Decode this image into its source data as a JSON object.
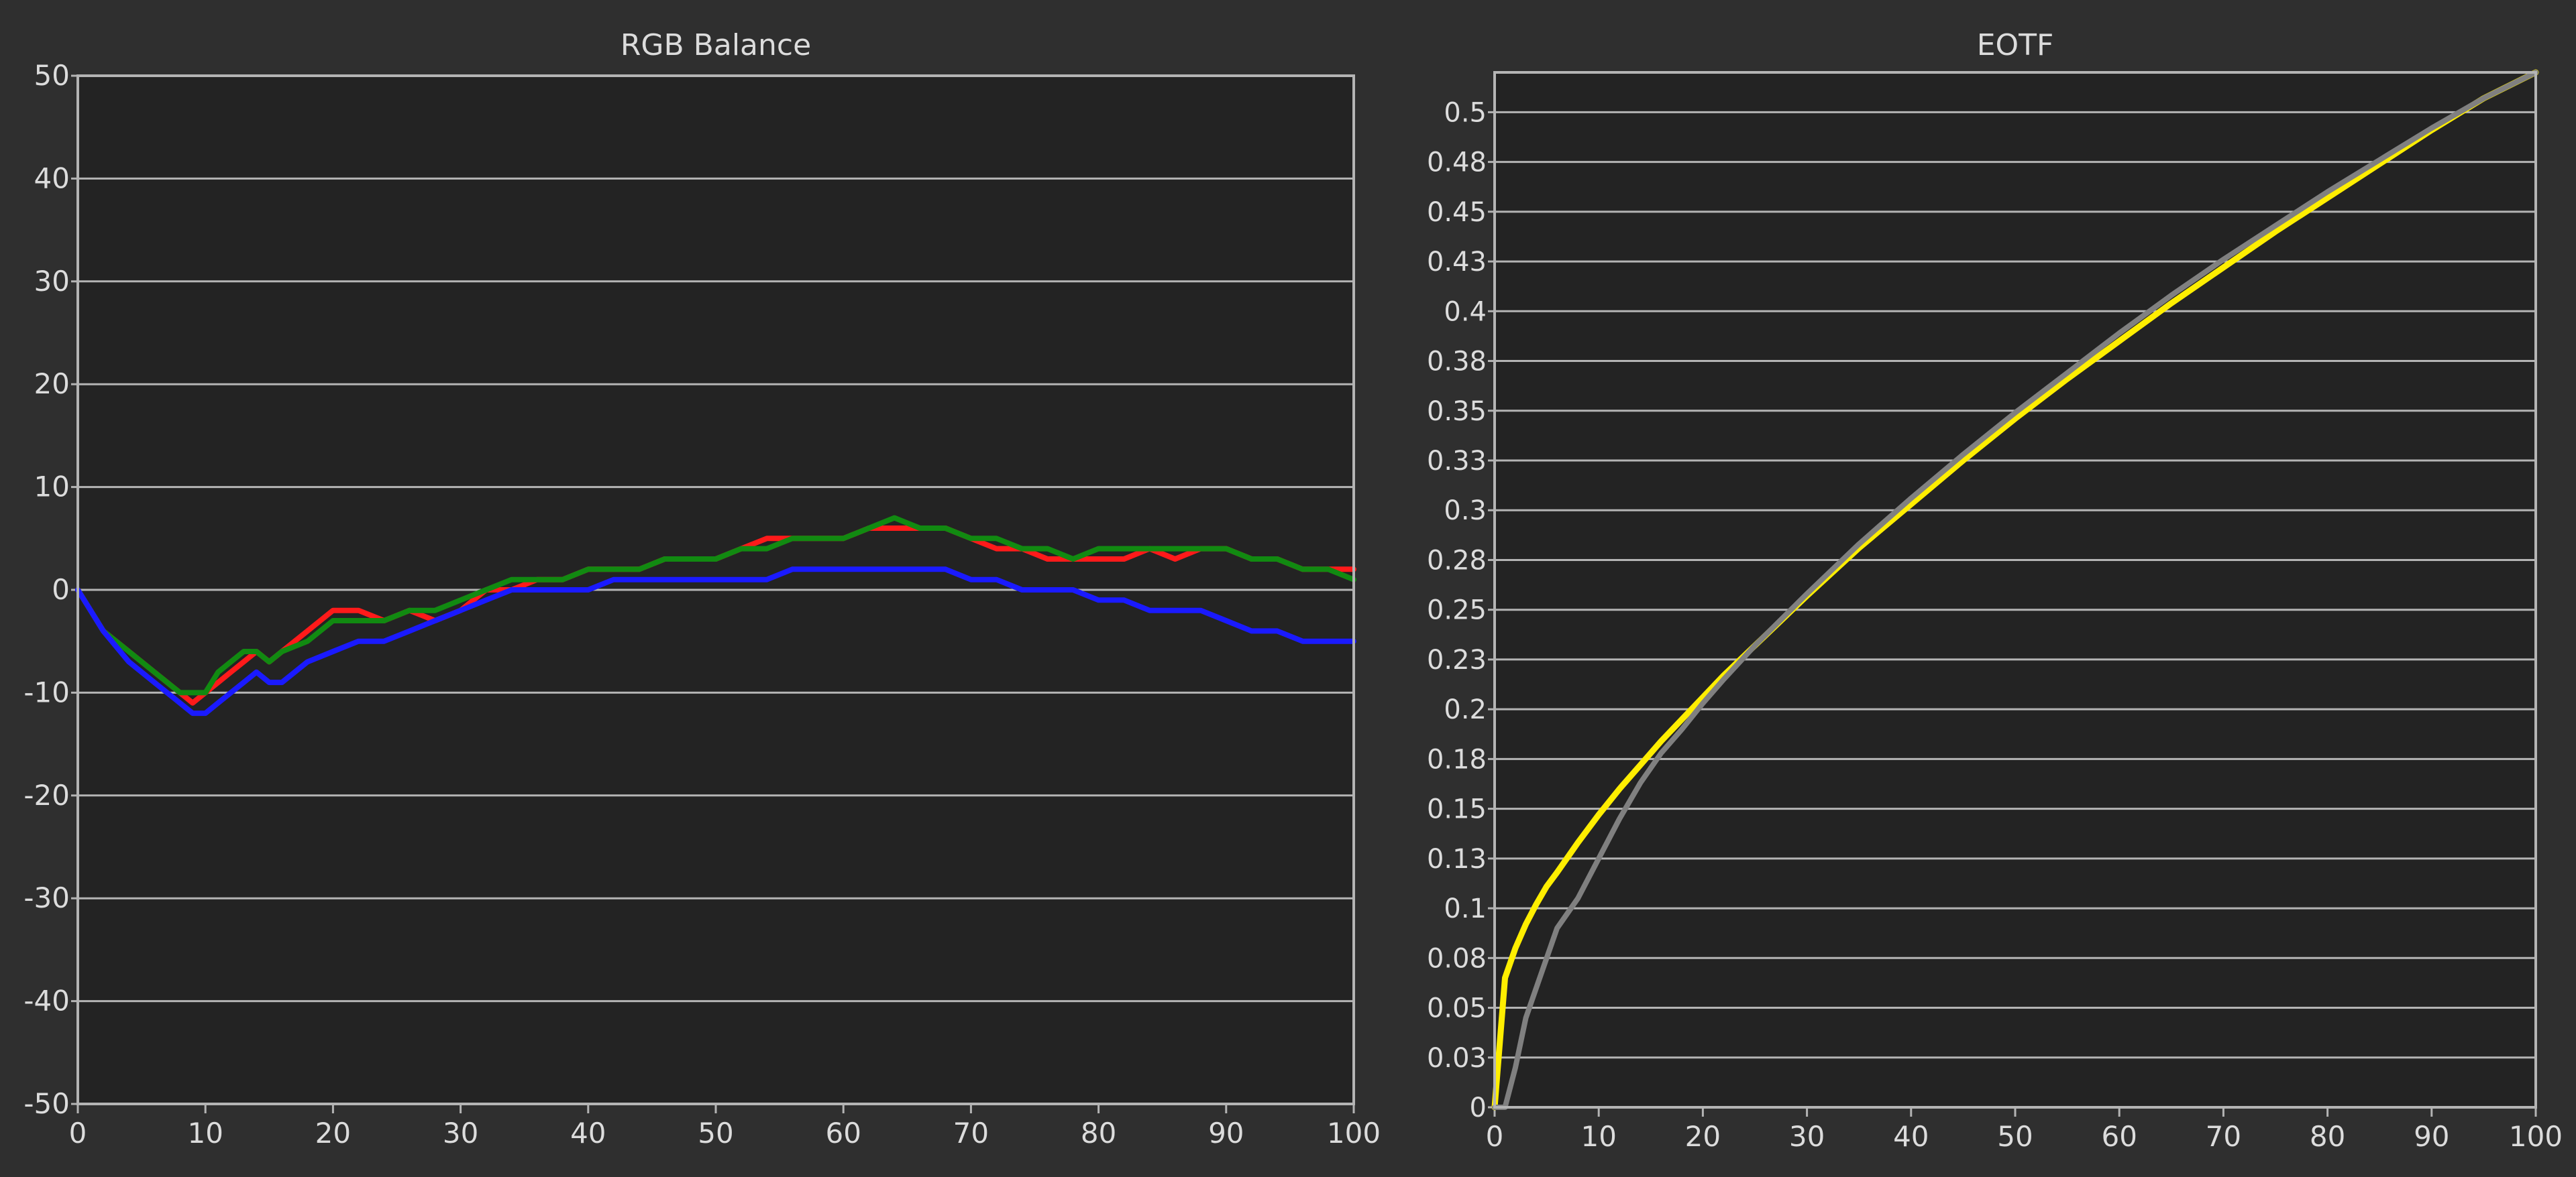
{
  "colors": {
    "background": "#2f2f2f",
    "plot_bg": "#232323",
    "grid": "#b4b4b4",
    "text": "#dcdcdc",
    "red": "#ff1a1a",
    "green": "#118a11",
    "blue": "#1a1aff",
    "eotf_measured": "#ffee00",
    "eotf_target": "#808080"
  },
  "chart_data": [
    {
      "type": "line",
      "title": "RGB Balance",
      "xlabel": "",
      "ylabel": "",
      "xlim": [
        0,
        100
      ],
      "ylim": [
        -50,
        50
      ],
      "x_ticks": [
        0,
        10,
        20,
        30,
        40,
        50,
        60,
        70,
        80,
        90,
        100
      ],
      "y_ticks": [
        -50,
        -40,
        -30,
        -20,
        -10,
        0,
        10,
        20,
        30,
        40,
        50
      ],
      "grid": true,
      "x": [
        0,
        2,
        4,
        6,
        8,
        9,
        10,
        11,
        12,
        13,
        14,
        15,
        16,
        18,
        20,
        22,
        24,
        26,
        28,
        30,
        32,
        34,
        36,
        38,
        40,
        42,
        44,
        46,
        48,
        50,
        52,
        54,
        56,
        58,
        60,
        62,
        64,
        66,
        68,
        70,
        72,
        74,
        76,
        78,
        80,
        82,
        84,
        86,
        88,
        90,
        92,
        94,
        96,
        98,
        100
      ],
      "series": [
        {
          "color": "red",
          "values": [
            0,
            -4,
            -6,
            -8,
            -10,
            -11,
            -10,
            -9,
            -8,
            -7,
            -6,
            -7,
            -6,
            -4,
            -2,
            -2,
            -3,
            -2,
            -3,
            -2,
            0,
            0,
            1,
            1,
            2,
            2,
            2,
            3,
            3,
            3,
            4,
            5,
            5,
            5,
            5,
            6,
            6,
            6,
            6,
            5,
            4,
            4,
            3,
            3,
            3,
            3,
            4,
            3,
            4,
            4,
            3,
            3,
            2,
            2,
            2
          ]
        },
        {
          "color": "green",
          "values": [
            0,
            -4,
            -6,
            -8,
            -10,
            -10,
            -10,
            -8,
            -7,
            -6,
            -6,
            -7,
            -6,
            -5,
            -3,
            -3,
            -3,
            -2,
            -2,
            -1,
            0,
            1,
            1,
            1,
            2,
            2,
            2,
            3,
            3,
            3,
            4,
            4,
            5,
            5,
            5,
            6,
            7,
            6,
            6,
            5,
            5,
            4,
            4,
            3,
            4,
            4,
            4,
            4,
            4,
            4,
            3,
            3,
            2,
            2,
            1
          ]
        },
        {
          "color": "blue",
          "values": [
            0,
            -4,
            -7,
            -9,
            -11,
            -12,
            -12,
            -11,
            -10,
            -9,
            -8,
            -9,
            -9,
            -7,
            -6,
            -5,
            -5,
            -4,
            -3,
            -2,
            -1,
            0,
            0,
            0,
            0,
            1,
            1,
            1,
            1,
            1,
            1,
            1,
            2,
            2,
            2,
            2,
            2,
            2,
            2,
            1,
            1,
            0,
            0,
            0,
            -1,
            -1,
            -2,
            -2,
            -2,
            -3,
            -4,
            -4,
            -5,
            -5,
            -5
          ]
        }
      ]
    },
    {
      "type": "line",
      "title": "EOTF",
      "xlabel": "",
      "ylabel": "",
      "xlim": [
        0,
        100
      ],
      "ylim": [
        0,
        0.52
      ],
      "x_ticks": [
        0,
        10,
        20,
        30,
        40,
        50,
        60,
        70,
        80,
        90,
        100
      ],
      "y_ticks": [
        0,
        0.025,
        0.05,
        0.075,
        0.1,
        0.125,
        0.15,
        0.175,
        0.2,
        0.225,
        0.25,
        0.275,
        0.3,
        0.325,
        0.35,
        0.375,
        0.4,
        0.425,
        0.45,
        0.475,
        0.5
      ],
      "y_tick_labels": [
        "0",
        "0.03",
        "0.05",
        "0.08",
        "0.1",
        "0.13",
        "0.15",
        "0.18",
        "0.2",
        "0.23",
        "0.25",
        "0.28",
        "0.3",
        "0.33",
        "0.35",
        "0.38",
        "0.4",
        "0.43",
        "0.45",
        "0.48",
        "0.5"
      ],
      "grid": true,
      "x": [
        0,
        1,
        2,
        3,
        4,
        5,
        6,
        8,
        10,
        12,
        14,
        16,
        18,
        20,
        22,
        25,
        30,
        35,
        40,
        45,
        50,
        55,
        60,
        65,
        70,
        75,
        80,
        85,
        90,
        95,
        100
      ],
      "series": [
        {
          "color": "eotf_measured",
          "values": [
            0,
            0.065,
            0.08,
            0.092,
            0.102,
            0.111,
            0.118,
            0.133,
            0.147,
            0.16,
            0.172,
            0.184,
            0.195,
            0.206,
            0.217,
            0.232,
            0.257,
            0.281,
            0.303,
            0.325,
            0.346,
            0.366,
            0.385,
            0.404,
            0.422,
            0.44,
            0.457,
            0.474,
            0.491,
            0.507,
            0.52
          ]
        },
        {
          "color": "eotf_target",
          "values": [
            0,
            0.0,
            0.02,
            0.045,
            0.06,
            0.075,
            0.09,
            0.105,
            0.125,
            0.145,
            0.163,
            0.178,
            0.19,
            0.203,
            0.215,
            0.232,
            0.258,
            0.283,
            0.306,
            0.328,
            0.349,
            0.369,
            0.389,
            0.408,
            0.426,
            0.443,
            0.46,
            0.476,
            0.492,
            0.507,
            0.52
          ]
        }
      ]
    }
  ]
}
